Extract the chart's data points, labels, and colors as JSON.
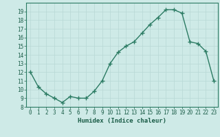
{
  "x": [
    0,
    1,
    2,
    3,
    4,
    5,
    6,
    7,
    8,
    9,
    10,
    11,
    12,
    13,
    14,
    15,
    16,
    17,
    18,
    19,
    20,
    21,
    22,
    23
  ],
  "y": [
    12.0,
    10.3,
    9.5,
    9.0,
    8.5,
    9.2,
    9.0,
    9.0,
    9.8,
    11.0,
    13.0,
    14.3,
    15.0,
    15.5,
    16.5,
    17.5,
    18.3,
    19.2,
    19.2,
    18.8,
    15.5,
    15.3,
    14.4,
    11.0
  ],
  "line_color": "#2a7a62",
  "marker": "+",
  "marker_size": 4,
  "marker_lw": 1.0,
  "line_width": 1.0,
  "bg_color": "#ceeae7",
  "grid_color": "#b8d8d5",
  "xlabel": "Humidex (Indice chaleur)",
  "xlim": [
    -0.5,
    23.5
  ],
  "ylim": [
    8,
    20
  ],
  "yticks": [
    8,
    9,
    10,
    11,
    12,
    13,
    14,
    15,
    16,
    17,
    18,
    19
  ],
  "xticks": [
    0,
    1,
    2,
    3,
    4,
    5,
    6,
    7,
    8,
    9,
    10,
    11,
    12,
    13,
    14,
    15,
    16,
    17,
    18,
    19,
    20,
    21,
    22,
    23
  ],
  "tick_label_fontsize": 5.5,
  "xlabel_fontsize": 6.5,
  "axis_color": "#1a5c47",
  "spine_color": "#2a7a62"
}
